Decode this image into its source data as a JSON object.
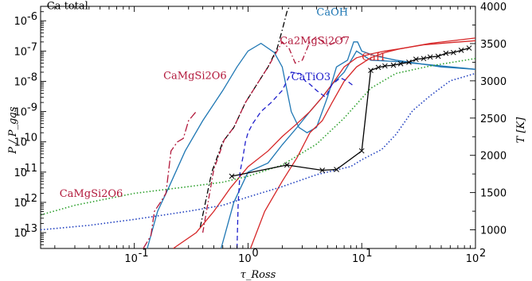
{
  "chart_data": {
    "type": "line",
    "xlabel": "τ_Ross",
    "ylabel_left": "P / P_gas",
    "ylabel_right": "T [K]",
    "x_scale": "log",
    "y_left_scale": "log",
    "xlim": [
      0.015,
      100
    ],
    "ylim_left": [
      3e-14,
      3e-06
    ],
    "ylim_right": [
      750,
      4000
    ],
    "x_ticks": [
      {
        "v": 0.1,
        "t": "10"
      },
      {
        "v": 1,
        "t": "10"
      },
      {
        "v": 10,
        "t": "10"
      },
      {
        "v": 100,
        "t": "10"
      }
    ],
    "x_tick_exps": [
      "-1",
      "0",
      "1",
      "2"
    ],
    "y_left_ticks": [
      {
        "v": 1e-13,
        "e": "-13"
      },
      {
        "v": 1e-12,
        "e": "-12"
      },
      {
        "v": 1e-11,
        "e": "-11"
      },
      {
        "v": 1e-10,
        "e": "-10"
      },
      {
        "v": 1e-09,
        "e": "-9"
      },
      {
        "v": 1e-08,
        "e": "-8"
      },
      {
        "v": 1e-07,
        "e": "-7"
      },
      {
        "v": 1e-06,
        "e": "-6"
      }
    ],
    "y_tick_base": "10",
    "y_right_ticks": [
      1000,
      1500,
      2000,
      2500,
      3000,
      3500,
      4000
    ],
    "series": [
      {
        "name": "Ca total",
        "color": "#000000",
        "dash": "7,3,1.5,3",
        "axis": "left",
        "points": [
          [
            0.38,
            1.5e-13
          ],
          [
            0.48,
            1e-11
          ],
          [
            0.6,
            1e-10
          ],
          [
            0.75,
            3e-10
          ],
          [
            0.95,
            2e-09
          ],
          [
            1.2,
            8e-09
          ],
          [
            1.5,
            3e-08
          ],
          [
            1.8,
            1.2e-07
          ],
          [
            2.0,
            5e-07
          ],
          [
            2.2,
            2e-06
          ],
          [
            2.4,
            4e-06
          ],
          [
            4,
            4e-06
          ],
          [
            7,
            4e-06
          ],
          [
            8.2,
            4e-06
          ],
          [
            9.5,
            4e-06
          ],
          [
            10.5,
            3.5e-06
          ],
          [
            100,
            3.5e-06
          ]
        ]
      },
      {
        "name": "CaOH",
        "color": "#1f77b4",
        "dash": "",
        "axis": "left",
        "points": [
          [
            0.13,
            3e-14
          ],
          [
            0.16,
            5e-13
          ],
          [
            0.2,
            3e-12
          ],
          [
            0.28,
            5e-11
          ],
          [
            0.4,
            5e-10
          ],
          [
            0.6,
            5e-09
          ],
          [
            0.8,
            3e-08
          ],
          [
            1.0,
            1e-07
          ],
          [
            1.3,
            1.8e-07
          ],
          [
            1.7,
            9e-08
          ],
          [
            2.0,
            3e-08
          ],
          [
            2.4,
            1e-09
          ],
          [
            2.8,
            3e-10
          ],
          [
            3.3,
            2e-10
          ],
          [
            4,
            3e-10
          ],
          [
            5,
            3e-09
          ],
          [
            6,
            3e-08
          ],
          [
            7.5,
            5e-08
          ],
          [
            8.5,
            2e-07
          ],
          [
            9.2,
            2e-07
          ],
          [
            10,
            1e-07
          ],
          [
            13,
            7e-08
          ],
          [
            20,
            5e-08
          ],
          [
            30,
            4e-08
          ],
          [
            50,
            3e-08
          ],
          [
            100,
            2.5e-08
          ]
        ]
      },
      {
        "name": "CaOH (second)",
        "color": "#1f77b4",
        "dash": "",
        "axis": "left",
        "points": [
          [
            0.58,
            3e-14
          ],
          [
            0.75,
            1e-12
          ],
          [
            1.0,
            1e-11
          ],
          [
            1.5,
            2e-11
          ],
          [
            2.0,
            8e-11
          ],
          [
            2.7,
            3e-10
          ],
          [
            3.5,
            1e-09
          ],
          [
            4.5,
            3e-09
          ],
          [
            5.5,
            8e-09
          ],
          [
            7,
            2e-08
          ],
          [
            9,
            1e-07
          ],
          [
            12,
            5e-08
          ],
          [
            20,
            4.5e-08
          ],
          [
            40,
            3.5e-08
          ],
          [
            100,
            2.5e-08
          ]
        ]
      },
      {
        "name": "CaH",
        "color": "#d62728",
        "dash": "",
        "axis": "left",
        "points": [
          [
            0.22,
            3e-14
          ],
          [
            0.35,
            1e-13
          ],
          [
            0.5,
            5e-13
          ],
          [
            0.7,
            3e-12
          ],
          [
            1.0,
            1.5e-11
          ],
          [
            1.5,
            5e-11
          ],
          [
            2.0,
            1.5e-10
          ],
          [
            2.7,
            4e-10
          ],
          [
            3.5,
            1e-09
          ],
          [
            4.5,
            3e-09
          ],
          [
            5.5,
            8e-09
          ],
          [
            7,
            3e-08
          ],
          [
            9,
            6e-08
          ],
          [
            12,
            8e-08
          ],
          [
            16,
            1e-07
          ],
          [
            22,
            1.2e-07
          ],
          [
            35,
            1.6e-07
          ],
          [
            60,
            1.9e-07
          ],
          [
            100,
            2.2e-07
          ]
        ]
      },
      {
        "name": "CaH (second)",
        "color": "#d62728",
        "dash": "",
        "axis": "left",
        "points": [
          [
            1.05,
            3e-14
          ],
          [
            1.4,
            5e-13
          ],
          [
            2.0,
            5e-12
          ],
          [
            2.7,
            3e-11
          ],
          [
            3.5,
            2e-10
          ],
          [
            4.5,
            5e-10
          ],
          [
            5.5,
            2e-09
          ],
          [
            7,
            1e-08
          ],
          [
            9,
            3e-08
          ],
          [
            12,
            6e-08
          ],
          [
            16,
            9e-08
          ],
          [
            22,
            1.2e-07
          ],
          [
            40,
            1.8e-07
          ],
          [
            100,
            2.7e-07
          ]
        ]
      },
      {
        "name": "CaTiO3",
        "color": "#1f1fcc",
        "dash": "6,4",
        "axis": "left",
        "points": [
          [
            0.8,
            3e-14
          ],
          [
            0.82,
            1e-12
          ],
          [
            0.85,
            1e-11
          ],
          [
            0.9,
            3e-11
          ],
          [
            0.95,
            1e-10
          ],
          [
            1.0,
            2e-10
          ],
          [
            1.1,
            4e-10
          ],
          [
            1.3,
            1e-09
          ],
          [
            1.6,
            2e-09
          ],
          [
            2.0,
            5e-09
          ],
          [
            2.4,
            2e-08
          ],
          [
            2.9,
            1.8e-08
          ],
          [
            3.2,
            1e-08
          ],
          [
            3.5,
            8e-09
          ],
          [
            4,
            5e-09
          ],
          [
            4.8,
            3e-09
          ],
          [
            5.5,
            8e-09
          ],
          [
            6.5,
            1.3e-08
          ],
          [
            7.5,
            1e-08
          ],
          [
            8.5,
            7e-09
          ]
        ]
      },
      {
        "name": "Ca2MgSi2O7",
        "color": "#b2183b",
        "dash": "7,3,1.5,3",
        "axis": "left",
        "points": [
          [
            0.4,
            1e-13
          ],
          [
            0.5,
            1.2e-11
          ],
          [
            0.62,
            1.2e-10
          ],
          [
            0.75,
            3e-10
          ],
          [
            0.95,
            2e-09
          ],
          [
            1.2,
            8e-09
          ],
          [
            1.5,
            3e-08
          ],
          [
            1.8,
            1e-07
          ],
          [
            2.0,
            2e-07
          ],
          [
            2.3,
            1.2e-07
          ],
          [
            2.6,
            4e-08
          ],
          [
            3.0,
            5e-08
          ],
          [
            3.5,
            2e-07
          ],
          [
            4.0,
            3e-07
          ],
          [
            5.0,
            1.5e-07
          ],
          [
            6.0,
            2e-07
          ],
          [
            7.0,
            3e-07
          ]
        ]
      },
      {
        "name": "CaMgSi2O6",
        "color": "#b2183b",
        "dash": "10,3,2,3",
        "axis": "left",
        "points": [
          [
            0.12,
            3e-14
          ],
          [
            0.14,
            8e-14
          ],
          [
            0.15,
            5e-13
          ],
          [
            0.17,
            1e-12
          ],
          [
            0.19,
            2e-12
          ],
          [
            0.21,
            5e-11
          ],
          [
            0.24,
            1e-10
          ],
          [
            0.27,
            1.3e-10
          ],
          [
            0.3,
            5e-10
          ],
          [
            0.35,
            1e-09
          ]
        ]
      },
      {
        "name": "T (green, dotted)",
        "color": "#2ca02c",
        "dash": "1.5,2.5",
        "axis": "right",
        "points": [
          [
            0.015,
            1200
          ],
          [
            0.03,
            1330
          ],
          [
            0.1,
            1490
          ],
          [
            0.3,
            1580
          ],
          [
            0.6,
            1640
          ],
          [
            1.0,
            1720
          ],
          [
            2.0,
            1870
          ],
          [
            4.0,
            2150
          ],
          [
            7,
            2500
          ],
          [
            12,
            2900
          ],
          [
            20,
            3100
          ],
          [
            40,
            3200
          ],
          [
            100,
            3300
          ]
        ]
      },
      {
        "name": "T (blue, dotted)",
        "color": "#1f3fbf",
        "dash": "1.5,2.5",
        "axis": "right",
        "points": [
          [
            0.015,
            1000
          ],
          [
            0.04,
            1060
          ],
          [
            0.1,
            1140
          ],
          [
            0.3,
            1250
          ],
          [
            0.6,
            1330
          ],
          [
            1.0,
            1440
          ],
          [
            2.0,
            1580
          ],
          [
            4.0,
            1740
          ],
          [
            8,
            1850
          ],
          [
            10,
            1940
          ],
          [
            15,
            2080
          ],
          [
            20,
            2280
          ],
          [
            28,
            2600
          ],
          [
            40,
            2800
          ],
          [
            60,
            3000
          ],
          [
            100,
            3100
          ]
        ]
      },
      {
        "name": "T (black, crosses)",
        "color": "#000000",
        "dash": "",
        "axis": "right",
        "marker": "x",
        "points": [
          [
            0.72,
            1720
          ],
          [
            2.2,
            1870
          ],
          [
            4.5,
            1800
          ],
          [
            6,
            1810
          ],
          [
            10,
            2060
          ],
          [
            12,
            3140
          ],
          [
            14,
            3180
          ],
          [
            16,
            3200
          ],
          [
            19,
            3210
          ],
          [
            22,
            3230
          ],
          [
            26,
            3250
          ],
          [
            30,
            3290
          ],
          [
            35,
            3300
          ],
          [
            40,
            3320
          ],
          [
            47,
            3330
          ],
          [
            55,
            3370
          ],
          [
            64,
            3380
          ],
          [
            75,
            3410
          ],
          [
            88,
            3440
          ]
        ]
      }
    ],
    "annotations": [
      {
        "text": "Ca total",
        "color": "#000000",
        "x": 0.017,
        "y": 2.4e-06,
        "anchor": "start"
      },
      {
        "text": "CaOH",
        "color": "#1f77b4",
        "x": 4.0,
        "y": 1.5e-06,
        "anchor": "start"
      },
      {
        "text": "Ca2MgSi2O7",
        "color": "#b2183b",
        "x": 1.9,
        "y": 1.7e-07,
        "anchor": "start"
      },
      {
        "text": "CaMgSi2O6",
        "color": "#b2183b",
        "x": 0.18,
        "y": 1.2e-08,
        "anchor": "start"
      },
      {
        "text": "CaTiO3",
        "color": "#1f1fcc",
        "x": 2.4,
        "y": 1.1e-08,
        "anchor": "start"
      },
      {
        "text": "CaH",
        "color": "#d62728",
        "x": 10.0,
        "y": 5e-08,
        "anchor": "start"
      },
      {
        "text": "CaMgSi2O6",
        "color": "#b2183b",
        "x": 0.022,
        "y": 1.5e-12,
        "anchor": "start"
      }
    ]
  }
}
